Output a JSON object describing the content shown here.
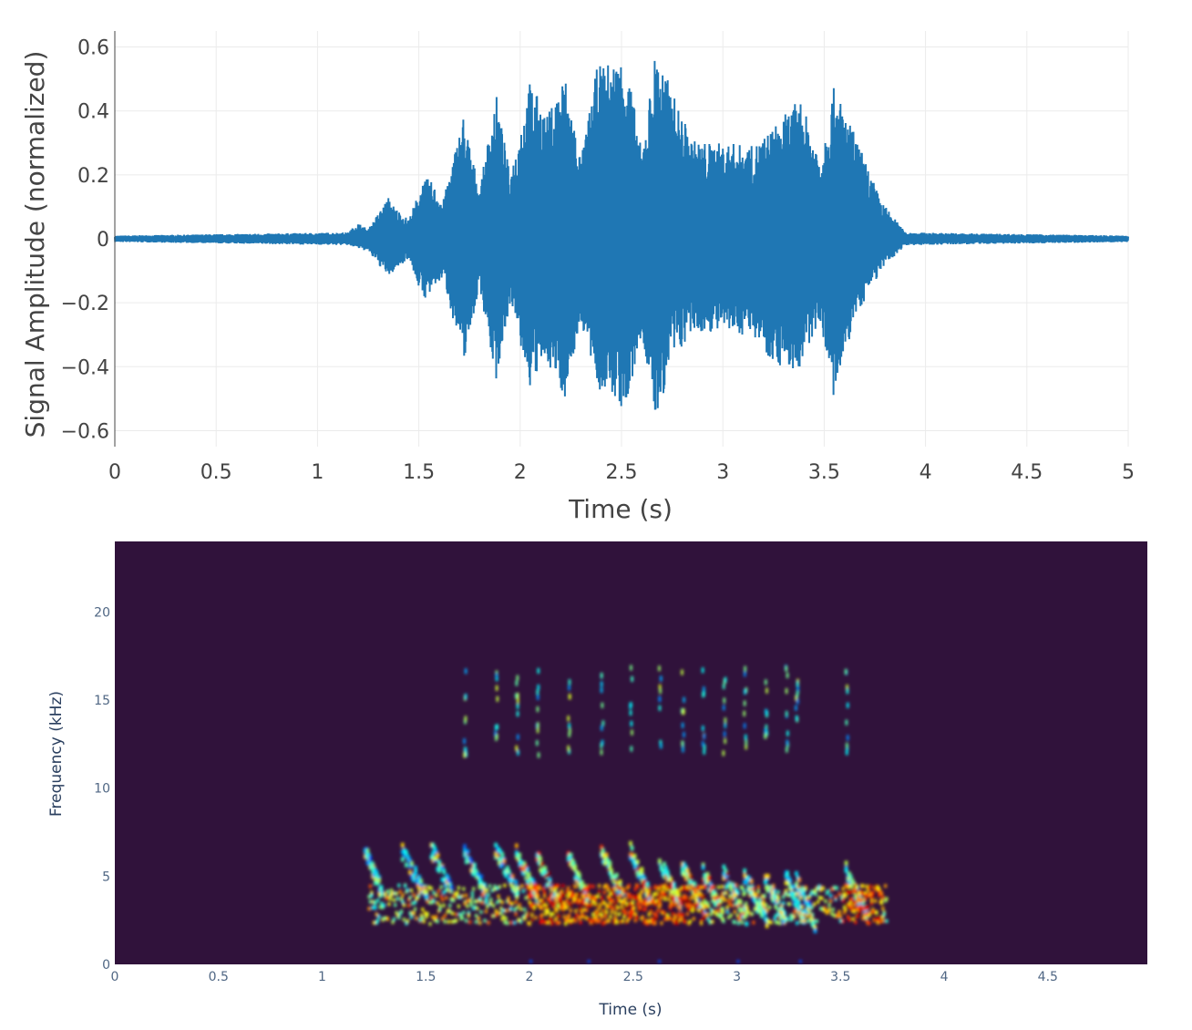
{
  "chart_data": [
    {
      "type": "line",
      "xlabel": "Time (s)",
      "ylabel": "Signal Amplitude (normalized)",
      "xlim": [
        0,
        5
      ],
      "ylim": [
        -0.65,
        0.65
      ],
      "x_ticks": [
        0,
        0.5,
        1,
        1.5,
        2,
        2.5,
        3,
        3.5,
        4,
        4.5,
        5
      ],
      "x_tick_labels": [
        "0",
        "0.5",
        "1",
        "1.5",
        "2",
        "2.5",
        "3",
        "3.5",
        "4",
        "4.5",
        "5"
      ],
      "y_ticks": [
        0.6,
        0.4,
        0.2,
        0,
        -0.2,
        -0.4,
        -0.6
      ],
      "y_tick_labels": [
        "0.6",
        "0.4",
        "0.2",
        "0",
        "−0.2",
        "−0.4",
        "−0.6"
      ],
      "grid": true,
      "line_color": "#1f77b4",
      "series": [
        {
          "x": [
            0.0,
            1.15,
            1.2,
            1.25,
            1.35,
            1.38,
            1.45,
            1.52,
            1.55,
            1.62,
            1.72,
            1.8,
            1.88,
            1.95,
            2.05,
            2.13,
            2.22,
            2.3,
            2.38,
            2.48,
            2.52,
            2.6,
            2.67,
            2.75,
            2.85,
            2.95,
            3.05,
            3.15,
            3.25,
            3.38,
            3.48,
            3.55,
            3.65,
            3.78,
            3.9,
            5.0
          ],
          "y_max": [
            0.01,
            0.02,
            0.05,
            0.03,
            0.13,
            0.1,
            0.06,
            0.18,
            0.19,
            0.12,
            0.39,
            0.15,
            0.46,
            0.2,
            0.5,
            0.38,
            0.52,
            0.25,
            0.54,
            0.56,
            0.58,
            0.27,
            0.6,
            0.46,
            0.31,
            0.3,
            0.3,
            0.29,
            0.35,
            0.44,
            0.26,
            0.48,
            0.33,
            0.12,
            0.02,
            0.01
          ],
          "y_min": [
            -0.01,
            -0.02,
            -0.03,
            -0.04,
            -0.12,
            -0.1,
            -0.06,
            -0.19,
            -0.18,
            -0.12,
            -0.39,
            -0.15,
            -0.45,
            -0.2,
            -0.47,
            -0.38,
            -0.5,
            -0.26,
            -0.47,
            -0.51,
            -0.56,
            -0.3,
            -0.58,
            -0.38,
            -0.3,
            -0.29,
            -0.3,
            -0.3,
            -0.39,
            -0.42,
            -0.25,
            -0.52,
            -0.25,
            -0.1,
            -0.02,
            -0.01
          ]
        }
      ]
    },
    {
      "type": "heatmap",
      "xlabel": "Time (s)",
      "ylabel": "Frequency (kHz)",
      "xlim": [
        0,
        4.98
      ],
      "ylim": [
        0,
        24
      ],
      "x_ticks": [
        0,
        0.5,
        1,
        1.5,
        2,
        2.5,
        3,
        3.5,
        4,
        4.5
      ],
      "x_tick_labels": [
        "0",
        "0.5",
        "1",
        "1.5",
        "2",
        "2.5",
        "3",
        "3.5",
        "4",
        "4.5"
      ],
      "y_ticks": [
        0,
        5,
        10,
        15,
        20
      ],
      "y_tick_labels": [
        "0",
        "5",
        "10",
        "15",
        "20"
      ],
      "colorscale": "jet",
      "background_color": "#30123b",
      "syllable_onsets_s": [
        1.2,
        1.38,
        1.52,
        1.68,
        1.83,
        1.93,
        2.03,
        2.18,
        2.34,
        2.48,
        2.62,
        2.73,
        2.83,
        2.93,
        3.03,
        3.13,
        3.23,
        3.28,
        3.52
      ],
      "peak_frequency_khz": [
        4.8,
        4.6,
        4.8,
        4.7,
        4.8,
        4.6,
        4.3,
        4.5,
        4.6,
        4.7,
        4.1,
        3.8,
        3.5,
        3.4,
        3.3,
        3.2,
        3.2,
        3.0,
        3.6
      ]
    }
  ]
}
